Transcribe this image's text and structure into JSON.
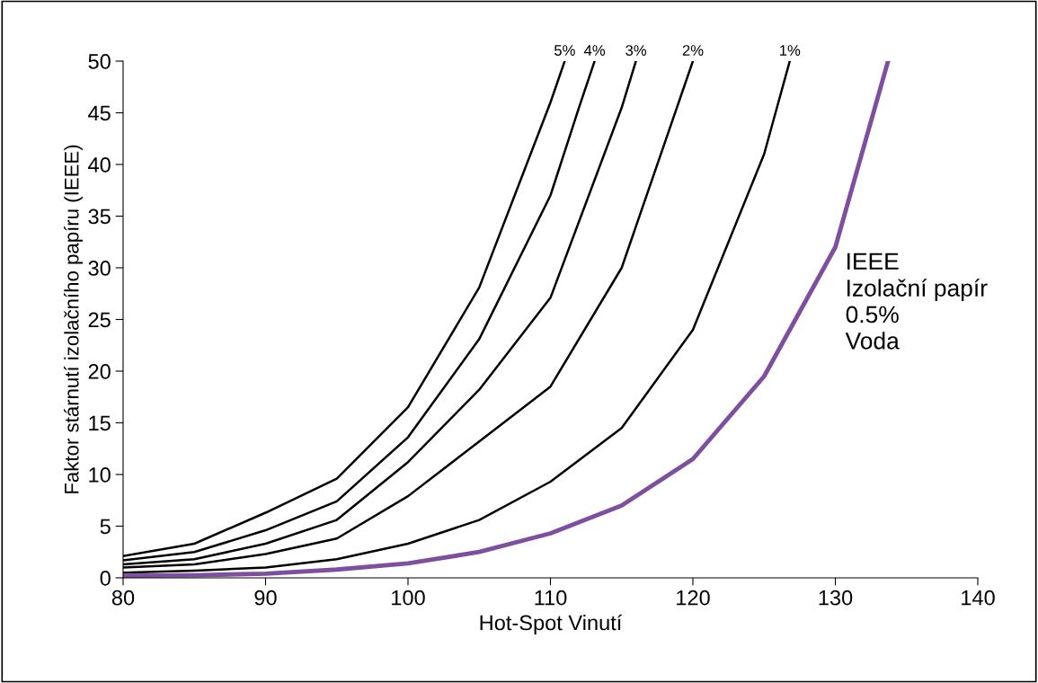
{
  "chart_data": {
    "type": "line",
    "xlabel": "Hot-Spot Vinutí",
    "ylabel": "Faktor stárnutí izolačního papíru (IEEE)",
    "xlim": [
      80,
      140
    ],
    "xticks": [
      80,
      90,
      100,
      110,
      120,
      130,
      140
    ],
    "ylim": [
      0,
      50
    ],
    "yticks": [
      0,
      5,
      10,
      15,
      20,
      25,
      30,
      35,
      40,
      45,
      50
    ],
    "grid": false,
    "legend": false,
    "marker": "none",
    "line_style": "solid",
    "series": [
      {
        "name": "5%",
        "color": "#000000",
        "x": [
          80,
          85,
          90,
          95,
          100,
          105,
          110,
          111.0
        ],
        "values": [
          2.1,
          3.3,
          6.3,
          9.6,
          16.5,
          28.1,
          46,
          50
        ]
      },
      {
        "name": "4%",
        "color": "#000000",
        "x": [
          80,
          85,
          90,
          95,
          100,
          105,
          110,
          112,
          113.1
        ],
        "values": [
          1.7,
          2.5,
          4.6,
          7.4,
          13.6,
          23.1,
          37,
          45.5,
          50
        ]
      },
      {
        "name": "3%",
        "color": "#000000",
        "x": [
          80,
          85,
          90,
          95,
          100,
          105,
          110,
          115,
          116.0
        ],
        "values": [
          1.3,
          1.8,
          3.3,
          5.6,
          11.2,
          18.2,
          27.1,
          45.5,
          50
        ]
      },
      {
        "name": "2%",
        "color": "#000000",
        "x": [
          80,
          85,
          90,
          95,
          100,
          105,
          110,
          115,
          120.0
        ],
        "values": [
          1.0,
          1.3,
          2.3,
          3.8,
          7.9,
          13.2,
          18.5,
          30,
          50
        ]
      },
      {
        "name": "1%",
        "color": "#000000",
        "x": [
          80,
          85,
          90,
          95,
          100,
          105,
          110,
          115,
          120,
          125,
          126.8
        ],
        "values": [
          0.5,
          0.7,
          1.0,
          1.8,
          3.3,
          5.6,
          9.3,
          14.5,
          24,
          41,
          50
        ]
      },
      {
        "color": "#7f4f9f",
        "x": [
          80,
          85,
          90,
          95,
          100,
          105,
          110,
          115,
          120,
          125,
          130,
          133.7
        ],
        "values": [
          0.2,
          0.25,
          0.4,
          0.8,
          1.4,
          2.5,
          4.3,
          7.0,
          11.5,
          19.5,
          32,
          50
        ]
      }
    ],
    "annotations": [
      "IEEE\nIzolační papír\n0.5%\nVoda"
    ]
  }
}
